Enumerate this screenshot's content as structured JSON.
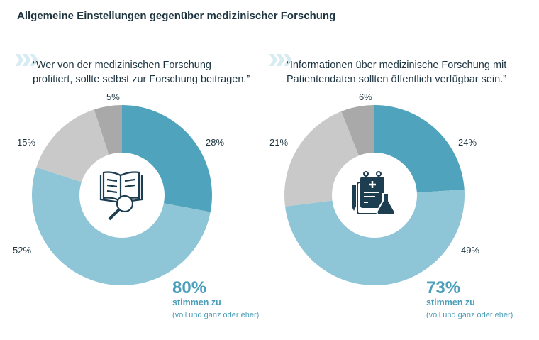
{
  "title": "Allgemeine Einstellungen gegenüber medizinischer Forschung",
  "chart_data": [
    {
      "type": "pie",
      "donut": true,
      "quote": "“Wer von der medizinischen Forschung profitiert, sollte selbst zur Forschung beitragen.”",
      "quote_lines": [
        "“Wer von der medizinischen Forschung",
        "profitiert, sollte selbst zur Forschung beitragen.”"
      ],
      "icon": "book-magnifier-icon",
      "values": [
        28,
        52,
        15,
        5
      ],
      "labels": [
        "28%",
        "52%",
        "15%",
        "5%"
      ],
      "colors": [
        "#4fa3bc",
        "#8fc6d7",
        "#c9c9c9",
        "#a9a9a9"
      ],
      "summary": {
        "value": "80%",
        "label": "stimmen zu",
        "note": "(voll und ganz oder eher)"
      }
    },
    {
      "type": "pie",
      "donut": true,
      "quote": "“Informationen über medizinische Forschung mit Patientendaten sollten öffentlich verfügbar sein.”",
      "quote_lines": [
        "“Informationen über medizinische Forschung mit",
        "Patientendaten sollten öffentlich verfügbar sein.”"
      ],
      "icon": "clipboard-flask-icon",
      "values": [
        24,
        49,
        21,
        6
      ],
      "labels": [
        "24%",
        "49%",
        "21%",
        "6%"
      ],
      "colors": [
        "#4fa3bc",
        "#8fc6d7",
        "#c9c9c9",
        "#a9a9a9"
      ],
      "summary": {
        "value": "73%",
        "label": "stimmen zu",
        "note": "(voll und ganz oder eher)"
      }
    }
  ]
}
